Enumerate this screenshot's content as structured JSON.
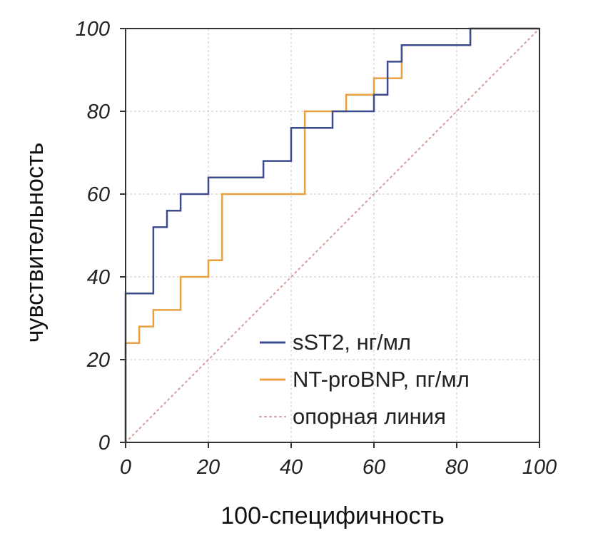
{
  "chart_data": {
    "type": "line",
    "title": "",
    "xlabel": "100-специфичность",
    "ylabel": "чувствительность",
    "xlim": [
      0,
      100
    ],
    "ylim": [
      0,
      100
    ],
    "x_ticks": [
      "0",
      "20",
      "40",
      "60",
      "80",
      "100"
    ],
    "y_ticks": [
      "0",
      "20",
      "40",
      "60",
      "80",
      "100"
    ],
    "grid": true,
    "legend": {
      "placement": "bottom-right"
    },
    "series": [
      {
        "name": "sST2, нг/мл",
        "color": "#3b4b8f",
        "style": "step",
        "points": [
          [
            0,
            0
          ],
          [
            0,
            36
          ],
          [
            6.7,
            36
          ],
          [
            6.7,
            52
          ],
          [
            10,
            52
          ],
          [
            10,
            56
          ],
          [
            13.3,
            56
          ],
          [
            13.3,
            60
          ],
          [
            20,
            60
          ],
          [
            20,
            64
          ],
          [
            33.3,
            64
          ],
          [
            33.3,
            68
          ],
          [
            40,
            68
          ],
          [
            40,
            76
          ],
          [
            50,
            76
          ],
          [
            50,
            80
          ],
          [
            60,
            80
          ],
          [
            60,
            84
          ],
          [
            63.3,
            84
          ],
          [
            63.3,
            92
          ],
          [
            66.7,
            92
          ],
          [
            66.7,
            96
          ],
          [
            83.3,
            96
          ],
          [
            83.3,
            100
          ],
          [
            100,
            100
          ]
        ]
      },
      {
        "name": "NT-proBNP, пг/мл",
        "color": "#e8a040",
        "style": "step",
        "points": [
          [
            0,
            0
          ],
          [
            0,
            24
          ],
          [
            3.3,
            24
          ],
          [
            3.3,
            28
          ],
          [
            6.7,
            28
          ],
          [
            6.7,
            32
          ],
          [
            13.3,
            32
          ],
          [
            13.3,
            40
          ],
          [
            20,
            40
          ],
          [
            20,
            44
          ],
          [
            23.3,
            44
          ],
          [
            23.3,
            60
          ],
          [
            43.3,
            60
          ],
          [
            43.3,
            80
          ],
          [
            53.3,
            80
          ],
          [
            53.3,
            84
          ],
          [
            60,
            84
          ],
          [
            60,
            88
          ],
          [
            66.7,
            88
          ],
          [
            66.7,
            96
          ],
          [
            83.3,
            96
          ],
          [
            83.3,
            100
          ],
          [
            100,
            100
          ]
        ]
      },
      {
        "name": "опорная линия",
        "color": "#d49a9a",
        "style": "dotted",
        "points": [
          [
            0,
            0
          ],
          [
            100,
            100
          ]
        ]
      }
    ]
  }
}
